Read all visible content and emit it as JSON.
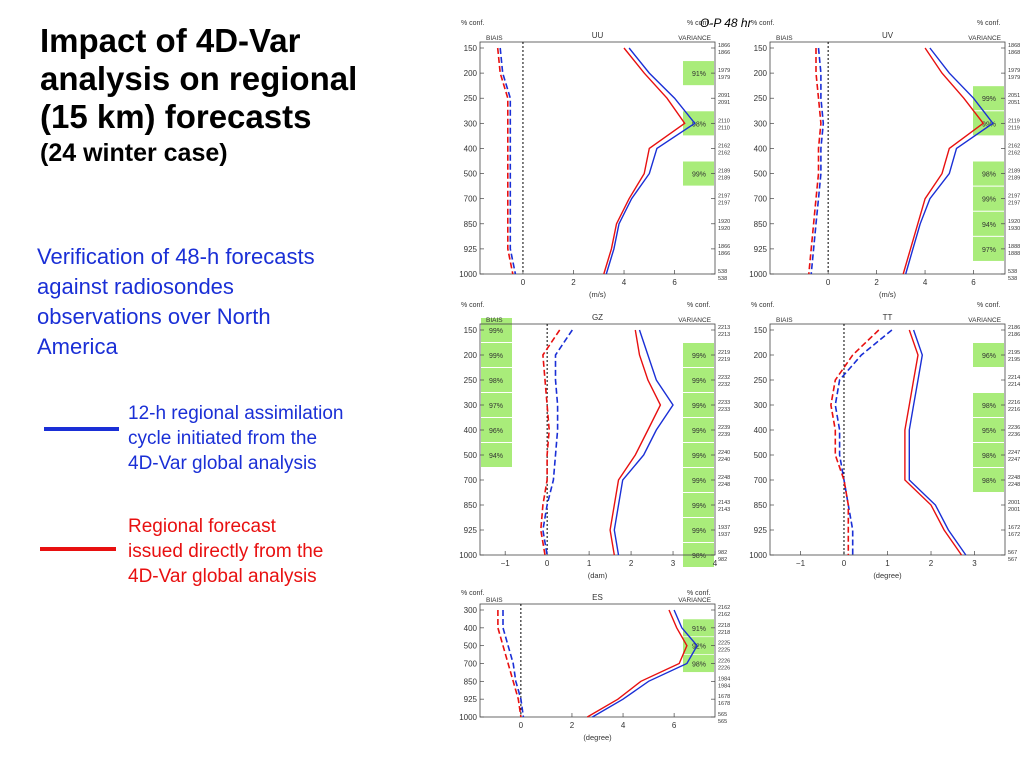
{
  "slide": {
    "title_lines": [
      "Impact of 4D-Var",
      "analysis on regional",
      "(15 km) forecasts"
    ],
    "subtitle": "(24 winter case)",
    "description_lines": [
      "Verification of 48-h forecasts",
      "against radiosondes",
      "observations over North",
      "America"
    ],
    "legend": [
      {
        "color": "#1a2fd6",
        "lines": [
          "12-h regional assimilation",
          "cycle initiated from the",
          "4D-Var global analysis"
        ]
      },
      {
        "color": "#e81010",
        "lines": [
          "Regional forecast",
          "issued directly from the",
          "4D-Var global analysis"
        ]
      }
    ],
    "overlay_text": "O-P 48 hr"
  },
  "colors": {
    "blue": "#1a2fd6",
    "red": "#e81010",
    "sig": "#a9ec7a"
  },
  "chart_data": [
    {
      "type": "line",
      "title": "UU",
      "xlabel": "(m/s)",
      "xticks": [
        0,
        2,
        4,
        6
      ],
      "xlim": [
        -1.7,
        7.6
      ],
      "levels": [
        150,
        200,
        250,
        300,
        400,
        500,
        700,
        850,
        925,
        1000
      ],
      "counts": [
        [
          "1866",
          "1866"
        ],
        [
          "1979",
          "1979"
        ],
        [
          "2091",
          "2091"
        ],
        [
          "2110",
          "2110"
        ],
        [
          "2162",
          "2162"
        ],
        [
          "2189",
          "2189"
        ],
        [
          "2197",
          "2197"
        ],
        [
          "1920",
          "1920"
        ],
        [
          "1866",
          "1866"
        ],
        [
          "538",
          "538"
        ]
      ],
      "conf": [
        "",
        "91%",
        "",
        "98%",
        "",
        "99%",
        "",
        "",
        "",
        ""
      ],
      "series": [
        {
          "name": "bias",
          "values": [
            -0.9,
            -0.8,
            -0.5,
            -0.5,
            -0.5,
            -0.5,
            -0.5,
            -0.5,
            -0.5,
            -0.3
          ]
        },
        {
          "name": "bias",
          "values": [
            -1.0,
            -0.9,
            -0.6,
            -0.6,
            -0.6,
            -0.6,
            -0.6,
            -0.6,
            -0.6,
            -0.4
          ]
        },
        {
          "name": "variance",
          "values": [
            4.2,
            5.0,
            6.0,
            6.8,
            5.3,
            5.0,
            4.3,
            3.8,
            3.6,
            3.3
          ]
        },
        {
          "name": "variance",
          "values": [
            4.0,
            4.8,
            5.7,
            6.4,
            5.0,
            4.8,
            4.2,
            3.7,
            3.5,
            3.2
          ]
        }
      ]
    },
    {
      "type": "line",
      "title": "UV",
      "xlabel": "(m/s)",
      "xticks": [
        0,
        2,
        4,
        6
      ],
      "xlim": [
        -2.4,
        7.3
      ],
      "levels": [
        150,
        200,
        250,
        300,
        400,
        500,
        700,
        850,
        925,
        1000
      ],
      "counts": [
        [
          "1868",
          "1868"
        ],
        [
          "1979",
          "1979"
        ],
        [
          "2051",
          "2051"
        ],
        [
          "2119",
          "2119"
        ],
        [
          "2162",
          "2162"
        ],
        [
          "2189",
          "2189"
        ],
        [
          "2197",
          "2197"
        ],
        [
          "1920",
          "1930"
        ],
        [
          "1888",
          "1888"
        ],
        [
          "538",
          "538"
        ]
      ],
      "conf": [
        "",
        "",
        "99%",
        "99%",
        "",
        "98%",
        "99%",
        "94%",
        "97%",
        ""
      ],
      "series": [
        {
          "name": "bias",
          "values": [
            -0.4,
            -0.3,
            -0.3,
            -0.2,
            -0.3,
            -0.3,
            -0.4,
            -0.5,
            -0.6,
            -0.7
          ]
        },
        {
          "name": "bias",
          "values": [
            -0.5,
            -0.5,
            -0.4,
            -0.3,
            -0.4,
            -0.4,
            -0.5,
            -0.6,
            -0.7,
            -0.8
          ]
        },
        {
          "name": "variance",
          "values": [
            4.2,
            5.0,
            6.0,
            6.8,
            5.3,
            5.0,
            4.2,
            3.8,
            3.5,
            3.2
          ]
        },
        {
          "name": "variance",
          "values": [
            4.0,
            4.7,
            5.6,
            6.4,
            5.0,
            4.7,
            4.0,
            3.7,
            3.4,
            3.1
          ]
        }
      ]
    },
    {
      "type": "line",
      "title": "GZ",
      "xlabel": "(dam)",
      "xticks": [
        -1,
        0,
        1,
        2,
        3,
        4
      ],
      "xlim": [
        -1.6,
        4.0
      ],
      "levels": [
        150,
        200,
        250,
        300,
        400,
        500,
        700,
        850,
        925,
        1000
      ],
      "counts": [
        [
          "2213",
          "2213"
        ],
        [
          "2219",
          "2219"
        ],
        [
          "2232",
          "2232"
        ],
        [
          "2233",
          "2233"
        ],
        [
          "2239",
          "2239"
        ],
        [
          "2240",
          "2240"
        ],
        [
          "2248",
          "2248"
        ],
        [
          "2143",
          "2143"
        ],
        [
          "1937",
          "1937"
        ],
        [
          "982",
          "982"
        ]
      ],
      "conf_left": [
        "99%",
        "99%",
        "98%",
        "97%",
        "96%",
        "94%",
        "",
        "",
        "",
        ""
      ],
      "conf": [
        "",
        "99%",
        "99%",
        "99%",
        "99%",
        "99%",
        "99%",
        "99%",
        "99%",
        "98%"
      ],
      "series": [
        {
          "name": "bias",
          "values": [
            0.6,
            0.2,
            0.2,
            0.25,
            0.25,
            0.2,
            0.15,
            0.0,
            -0.1,
            0.0
          ]
        },
        {
          "name": "bias",
          "values": [
            0.3,
            -0.1,
            -0.05,
            0.0,
            0.05,
            0.0,
            0.0,
            -0.1,
            -0.15,
            -0.05
          ]
        },
        {
          "name": "variance",
          "values": [
            2.2,
            2.4,
            2.6,
            3.0,
            2.6,
            2.3,
            1.8,
            1.7,
            1.6,
            1.7
          ]
        },
        {
          "name": "variance",
          "values": [
            2.1,
            2.2,
            2.4,
            2.7,
            2.4,
            2.1,
            1.7,
            1.6,
            1.5,
            1.6
          ]
        }
      ]
    },
    {
      "type": "line",
      "title": "TT",
      "xlabel": "(degree)",
      "xticks": [
        -1,
        0,
        1,
        2,
        3
      ],
      "xlim": [
        -1.7,
        3.7
      ],
      "levels": [
        150,
        200,
        250,
        300,
        400,
        500,
        700,
        850,
        925,
        1000
      ],
      "counts": [
        [
          "2186",
          "2186"
        ],
        [
          "2195",
          "2195"
        ],
        [
          "2214",
          "2214"
        ],
        [
          "2216",
          "2216"
        ],
        [
          "2236",
          "2236"
        ],
        [
          "2247",
          "2247"
        ],
        [
          "2248",
          "2248"
        ],
        [
          "2001",
          "2001"
        ],
        [
          "1672",
          "1672"
        ],
        [
          "567",
          "567"
        ]
      ],
      "conf": [
        "",
        "96%",
        "",
        "98%",
        "95%",
        "98%",
        "98%",
        "",
        "",
        ""
      ],
      "series": [
        {
          "name": "bias",
          "values": [
            1.1,
            0.4,
            -0.1,
            -0.2,
            -0.1,
            -0.1,
            0.0,
            0.1,
            0.2,
            0.2
          ]
        },
        {
          "name": "bias",
          "values": [
            0.8,
            0.2,
            -0.2,
            -0.3,
            -0.2,
            -0.2,
            0.0,
            0.1,
            0.1,
            0.1
          ]
        },
        {
          "name": "variance",
          "values": [
            1.6,
            1.8,
            1.7,
            1.6,
            1.5,
            1.5,
            1.5,
            2.1,
            2.4,
            2.8
          ]
        },
        {
          "name": "variance",
          "values": [
            1.5,
            1.7,
            1.6,
            1.5,
            1.4,
            1.4,
            1.4,
            2.0,
            2.3,
            2.7
          ]
        }
      ]
    },
    {
      "type": "line",
      "title": "ES",
      "xlabel": "(degree)",
      "xticks": [
        0,
        2,
        4,
        6
      ],
      "xlim": [
        -1.6,
        7.6
      ],
      "levels": [
        300,
        400,
        500,
        700,
        850,
        925,
        1000
      ],
      "counts": [
        [
          "2162",
          "2162"
        ],
        [
          "2218",
          "2218"
        ],
        [
          "2225",
          "2225"
        ],
        [
          "2226",
          "2226"
        ],
        [
          "1984",
          "1984"
        ],
        [
          "1678",
          "1678"
        ],
        [
          "565",
          "565"
        ]
      ],
      "conf": [
        "",
        "91%",
        "92%",
        "98%",
        "",
        "",
        ""
      ],
      "series": [
        {
          "name": "bias",
          "values": [
            -0.7,
            -0.7,
            -0.5,
            -0.3,
            -0.2,
            0.0,
            0.1
          ]
        },
        {
          "name": "bias",
          "values": [
            -0.9,
            -0.9,
            -0.7,
            -0.5,
            -0.3,
            -0.1,
            0.0
          ]
        },
        {
          "name": "variance",
          "values": [
            6.0,
            6.3,
            6.9,
            6.5,
            5.0,
            4.0,
            2.8
          ]
        },
        {
          "name": "variance",
          "values": [
            5.8,
            6.1,
            6.5,
            6.2,
            4.7,
            3.8,
            2.6
          ]
        }
      ]
    }
  ],
  "chart_labels": {
    "pct_conf": "% conf.",
    "bias": "BIAIS",
    "variance": "VARIANCE"
  }
}
